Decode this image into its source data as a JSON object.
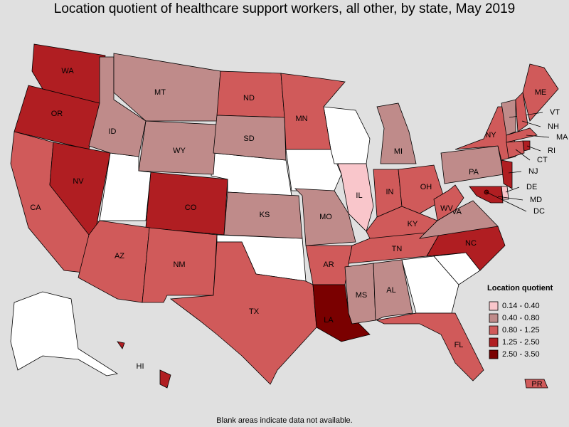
{
  "title": "Location quotient of healthcare support workers, all other, by state, May 2019",
  "footnote": "Blank areas indicate data not available.",
  "legend": {
    "title": "Location quotient",
    "items": [
      {
        "label": "0.14 - 0.40",
        "color": "#f9c6cb"
      },
      {
        "label": "0.40 - 0.80",
        "color": "#bf8b8a"
      },
      {
        "label": "0.80 - 1.25",
        "color": "#d05a5a"
      },
      {
        "label": "1.25 - 2.50",
        "color": "#b01e22"
      },
      {
        "label": "2.50 - 3.50",
        "color": "#7a0000"
      }
    ]
  },
  "states": [
    {
      "label": "WA",
      "color": "#b01e22"
    },
    {
      "label": "OR",
      "color": "#b01e22"
    },
    {
      "label": "CA",
      "color": "#d05a5a"
    },
    {
      "label": "NV",
      "color": "#b01e22"
    },
    {
      "label": "ID",
      "color": "#bf8b8a"
    },
    {
      "label": "MT",
      "color": "#bf8b8a"
    },
    {
      "label": "WY",
      "color": "#bf8b8a"
    },
    {
      "label": "CO",
      "color": "#b01e22"
    },
    {
      "label": "AZ",
      "color": "#d05a5a"
    },
    {
      "label": "NM",
      "color": "#d05a5a"
    },
    {
      "label": "ND",
      "color": "#d05a5a"
    },
    {
      "label": "SD",
      "color": "#bf8b8a"
    },
    {
      "label": "KS",
      "color": "#bf8b8a"
    },
    {
      "label": "TX",
      "color": "#d05a5a"
    },
    {
      "label": "MN",
      "color": "#d05a5a"
    },
    {
      "label": "MO",
      "color": "#bf8b8a"
    },
    {
      "label": "AR",
      "color": "#d05a5a"
    },
    {
      "label": "LA",
      "color": "#7a0000"
    },
    {
      "label": "IL",
      "color": "#f9c6cb"
    },
    {
      "label": "MI",
      "color": "#bf8b8a"
    },
    {
      "label": "IN",
      "color": "#d05a5a"
    },
    {
      "label": "OH",
      "color": "#d05a5a"
    },
    {
      "label": "KY",
      "color": "#d05a5a"
    },
    {
      "label": "TN",
      "color": "#d05a5a"
    },
    {
      "label": "MS",
      "color": "#bf8b8a"
    },
    {
      "label": "AL",
      "color": "#bf8b8a"
    },
    {
      "label": "FL",
      "color": "#d05a5a"
    },
    {
      "label": "NC",
      "color": "#b01e22"
    },
    {
      "label": "VA",
      "color": "#bf8b8a"
    },
    {
      "label": "WV",
      "color": "#d05a5a"
    },
    {
      "label": "PA",
      "color": "#bf8b8a"
    },
    {
      "label": "NY",
      "color": "#d05a5a"
    },
    {
      "label": "ME",
      "color": "#d05a5a"
    },
    {
      "label": "VT",
      "color": "#bf8b8a"
    },
    {
      "label": "NH",
      "color": "#d05a5a"
    },
    {
      "label": "MA",
      "color": "#d05a5a"
    },
    {
      "label": "RI",
      "color": "#b01e22"
    },
    {
      "label": "CT",
      "color": "#d05a5a"
    },
    {
      "label": "NJ",
      "color": "#b01e22"
    },
    {
      "label": "DE",
      "color": "#f9c6cb"
    },
    {
      "label": "MD",
      "color": "#b01e22"
    },
    {
      "label": "DC",
      "color": "#7a0000"
    },
    {
      "label": "HI",
      "color": "#b01e22"
    },
    {
      "label": "PR",
      "color": "#d05a5a"
    }
  ]
}
